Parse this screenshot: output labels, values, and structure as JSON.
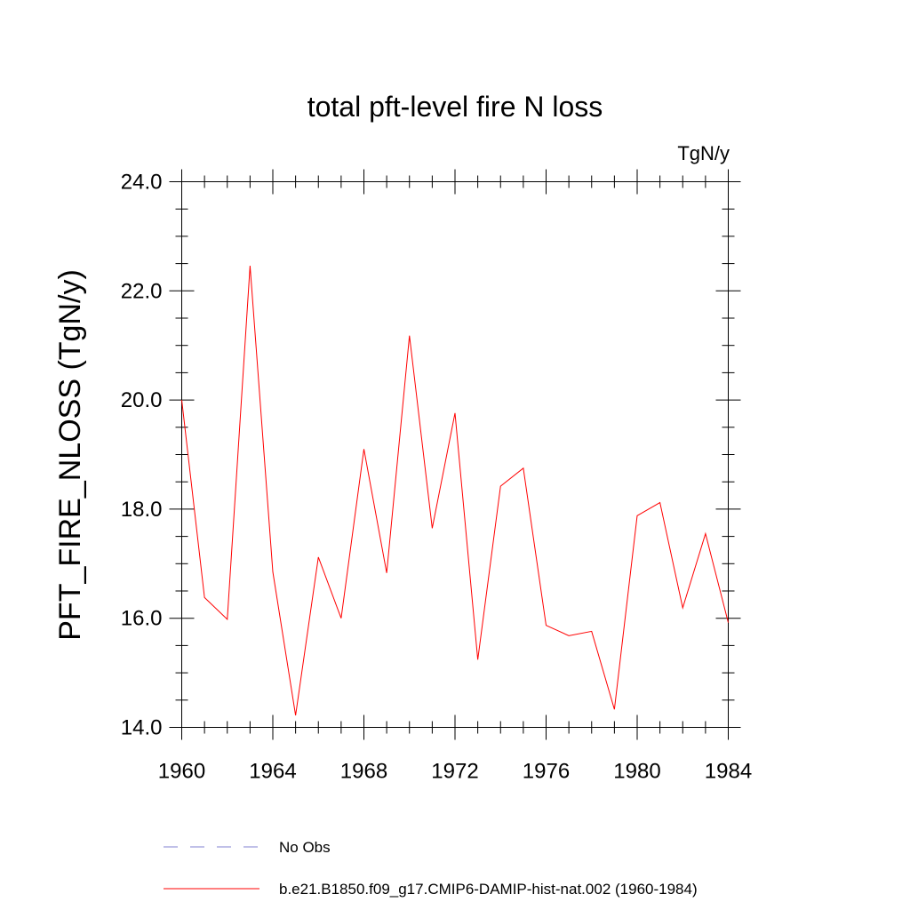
{
  "chart_data": {
    "type": "line",
    "title": "total pft-level fire N loss",
    "units_label": "TgN/y",
    "xlabel": "",
    "ylabel": "PFT_FIRE_NLOSS  (TgN/y)",
    "xlim": [
      1960,
      1984
    ],
    "ylim": [
      14.0,
      24.0
    ],
    "x_ticks": [
      1960,
      1964,
      1968,
      1972,
      1976,
      1980,
      1984
    ],
    "x_tick_labels": [
      "1960",
      "1964",
      "1968",
      "1972",
      "1976",
      "1980",
      "1984"
    ],
    "y_ticks": [
      14.0,
      16.0,
      18.0,
      20.0,
      22.0,
      24.0
    ],
    "y_tick_labels": [
      "14.0",
      "16.0",
      "18.0",
      "20.0",
      "22.0",
      "24.0"
    ],
    "grid": false,
    "legend_position": "bottom",
    "series": [
      {
        "name": "b.e21.B1850.f09_g17.CMIP6-DAMIP-hist-nat.002 (1960-1984)",
        "color": "#ff0000",
        "style": "solid",
        "x": [
          1960,
          1961,
          1962,
          1963,
          1964,
          1965,
          1966,
          1967,
          1968,
          1969,
          1970,
          1971,
          1972,
          1973,
          1974,
          1975,
          1976,
          1977,
          1978,
          1979,
          1980,
          1981,
          1982,
          1983,
          1984
        ],
        "y": [
          20.0,
          16.38,
          15.98,
          22.46,
          16.85,
          14.22,
          17.12,
          16.0,
          19.1,
          16.83,
          21.18,
          17.65,
          19.76,
          15.24,
          18.42,
          18.75,
          15.87,
          15.68,
          15.76,
          14.33,
          17.88,
          18.12,
          16.19,
          17.55,
          15.92
        ]
      }
    ],
    "legend": [
      {
        "label": "No Obs",
        "color": "#8080d0",
        "style": "dashed"
      },
      {
        "label": "b.e21.B1850.f09_g17.CMIP6-DAMIP-hist-nat.002 (1960-1984)",
        "color": "#ff0000",
        "style": "solid"
      }
    ]
  }
}
